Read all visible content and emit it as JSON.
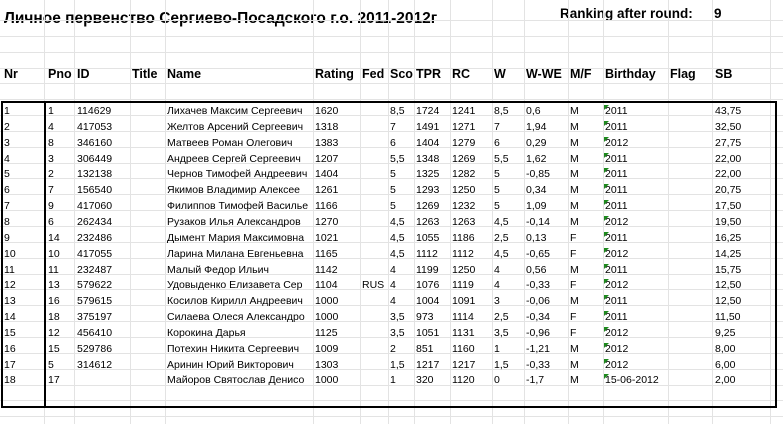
{
  "sheet": {
    "title": "Личное первенство Сергиево-Посадского г.о. 2011-2012г",
    "ranking_label": "Ranking after round:",
    "ranking_value": "9"
  },
  "headers": [
    "Nr",
    "Pno",
    "ID",
    "Title",
    "Name",
    "Rating",
    "Fed",
    "Sco",
    "TPR",
    "RC",
    "W",
    "W-WE",
    "M/F",
    "Birthday",
    "Flag",
    "SB"
  ],
  "rows": [
    [
      "1",
      "1",
      "114629",
      "",
      "Лихачев Максим Сергеевич",
      "1620",
      "",
      "8,5",
      "1724",
      "1241",
      "8,5",
      "0,6",
      "M",
      "2011",
      "",
      "43,75"
    ],
    [
      "2",
      "4",
      "417053",
      "",
      "Желтов Арсений Сергеевич",
      "1318",
      "",
      "7",
      "1491",
      "1271",
      "7",
      "1,94",
      "M",
      "2011",
      "",
      "32,50"
    ],
    [
      "3",
      "8",
      "346160",
      "",
      "Матвеев Роман Олегович",
      "1383",
      "",
      "6",
      "1404",
      "1279",
      "6",
      "0,29",
      "M",
      "2012",
      "",
      "27,75"
    ],
    [
      "4",
      "3",
      "306449",
      "",
      "Андреев Сергей Сергеевич",
      "1207",
      "",
      "5,5",
      "1348",
      "1269",
      "5,5",
      "1,62",
      "M",
      "2011",
      "",
      "22,00"
    ],
    [
      "5",
      "2",
      "132138",
      "",
      "Чернов Тимофей Андреевич",
      "1404",
      "",
      "5",
      "1325",
      "1282",
      "5",
      "-0,85",
      "M",
      "2011",
      "",
      "22,00"
    ],
    [
      "6",
      "7",
      "156540",
      "",
      "Якимов Владимир Алексее",
      "1261",
      "",
      "5",
      "1293",
      "1250",
      "5",
      "0,34",
      "M",
      "2011",
      "",
      "20,75"
    ],
    [
      "7",
      "9",
      "417060",
      "",
      "Филиппов Тимофей Василье",
      "1166",
      "",
      "5",
      "1269",
      "1232",
      "5",
      "1,09",
      "M",
      "2011",
      "",
      "17,50"
    ],
    [
      "8",
      "6",
      "262434",
      "",
      "Рузаков Илья Александров",
      "1270",
      "",
      "4,5",
      "1263",
      "1263",
      "4,5",
      "-0,14",
      "M",
      "2012",
      "",
      "19,50"
    ],
    [
      "9",
      "14",
      "232486",
      "",
      "Дымент Мария Максимовна",
      "1021",
      "",
      "4,5",
      "1055",
      "1186",
      "2,5",
      "0,13",
      "F",
      "2011",
      "",
      "16,25"
    ],
    [
      "10",
      "10",
      "417055",
      "",
      "Ларина Милана Евгеньевна",
      "1165",
      "",
      "4,5",
      "1112",
      "1112",
      "4,5",
      "-0,65",
      "F",
      "2012",
      "",
      "14,25"
    ],
    [
      "11",
      "11",
      "232487",
      "",
      "Малый Федор Ильич",
      "1142",
      "",
      "4",
      "1199",
      "1250",
      "4",
      "0,56",
      "M",
      "2011",
      "",
      "15,75"
    ],
    [
      "12",
      "13",
      "579622",
      "",
      "Удовыденко Елизавета Сер",
      "1104",
      "RUS",
      "4",
      "1076",
      "1119",
      "4",
      "-0,33",
      "F",
      "2012",
      "",
      "12,50"
    ],
    [
      "13",
      "16",
      "579615",
      "",
      "Косилов Кирилл Андреевич",
      "1000",
      "",
      "4",
      "1004",
      "1091",
      "3",
      "-0,06",
      "M",
      "2011",
      "",
      "12,50"
    ],
    [
      "14",
      "18",
      "375197",
      "",
      "Силаева Олеся Александро",
      "1000",
      "",
      "3,5",
      "973",
      "1114",
      "2,5",
      "-0,34",
      "F",
      "2011",
      "",
      "11,50"
    ],
    [
      "15",
      "12",
      "456410",
      "",
      "Корокина Дарья",
      "1125",
      "",
      "3,5",
      "1051",
      "1131",
      "3,5",
      "-0,96",
      "F",
      "2012",
      "",
      "9,25"
    ],
    [
      "16",
      "15",
      "529786",
      "",
      "Потехин Никита Сергеевич",
      "1009",
      "",
      "2",
      "851",
      "1160",
      "1",
      "-1,21",
      "M",
      "2012",
      "",
      "8,00"
    ],
    [
      "17",
      "5",
      "314612",
      "",
      "Аринин Юрий Викторович",
      "1303",
      "",
      "1,5",
      "1217",
      "1217",
      "1,5",
      "-0,33",
      "M",
      "2012",
      "",
      "6,00"
    ],
    [
      "18",
      "17",
      "",
      "",
      "Майоров Святослав Денисо",
      "1000",
      "",
      "1",
      "320",
      "1120",
      "0",
      "-1,7",
      "M",
      "15-06-2012",
      "",
      "2,00"
    ]
  ],
  "colors": {
    "grid": "#e3e3e3",
    "marker": "#1e8a1e",
    "border": "#000000"
  }
}
